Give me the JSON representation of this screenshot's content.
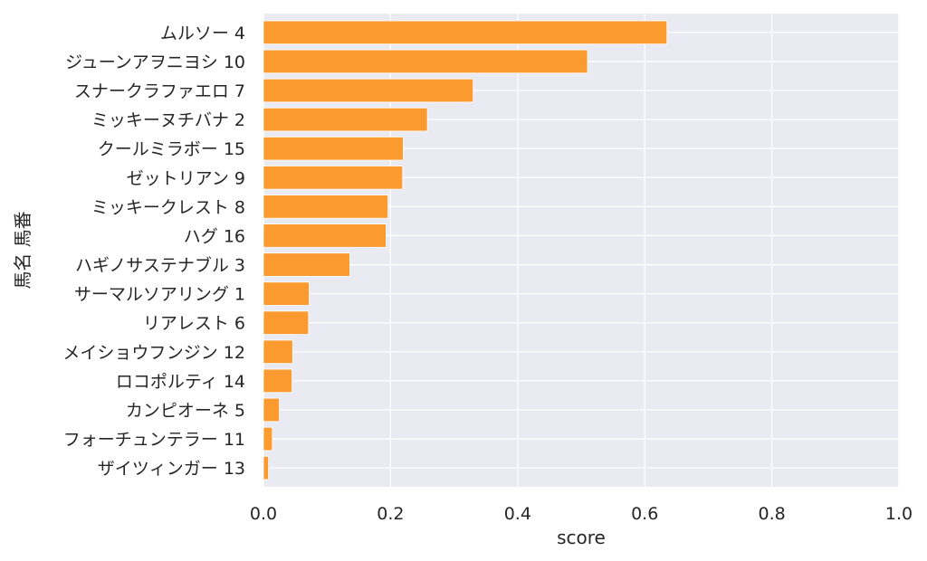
{
  "chart_data": {
    "type": "bar",
    "orientation": "horizontal",
    "xlabel": "score",
    "ylabel": "馬名 馬番",
    "xlim": [
      0.0,
      1.0
    ],
    "xticks": [
      "0.0",
      "0.2",
      "0.4",
      "0.6",
      "0.8",
      "1.0"
    ],
    "grid": true,
    "bar_color": "#fb9a2f",
    "background_color": "#eaeaf2",
    "grid_color": "#ffffff",
    "categories": [
      "ムルソー 4",
      "ジューンアヲニヨシ 10",
      "スナークラファエロ 7",
      "ミッキーヌチバナ 2",
      "クールミラボー 15",
      "ゼットリアン 9",
      "ミッキークレスト 8",
      "ハグ 16",
      "ハギノサステナブル 3",
      "サーマルソアリング 1",
      "リアレスト 6",
      "メイショウフンジン 12",
      "ロコポルティ 14",
      "カンピオーネ 5",
      "フォーチュンテラー 11",
      "ザイツィンガー 13"
    ],
    "values": [
      0.635,
      0.51,
      0.33,
      0.258,
      0.22,
      0.219,
      0.196,
      0.193,
      0.136,
      0.072,
      0.071,
      0.046,
      0.045,
      0.025,
      0.014,
      0.008
    ]
  }
}
